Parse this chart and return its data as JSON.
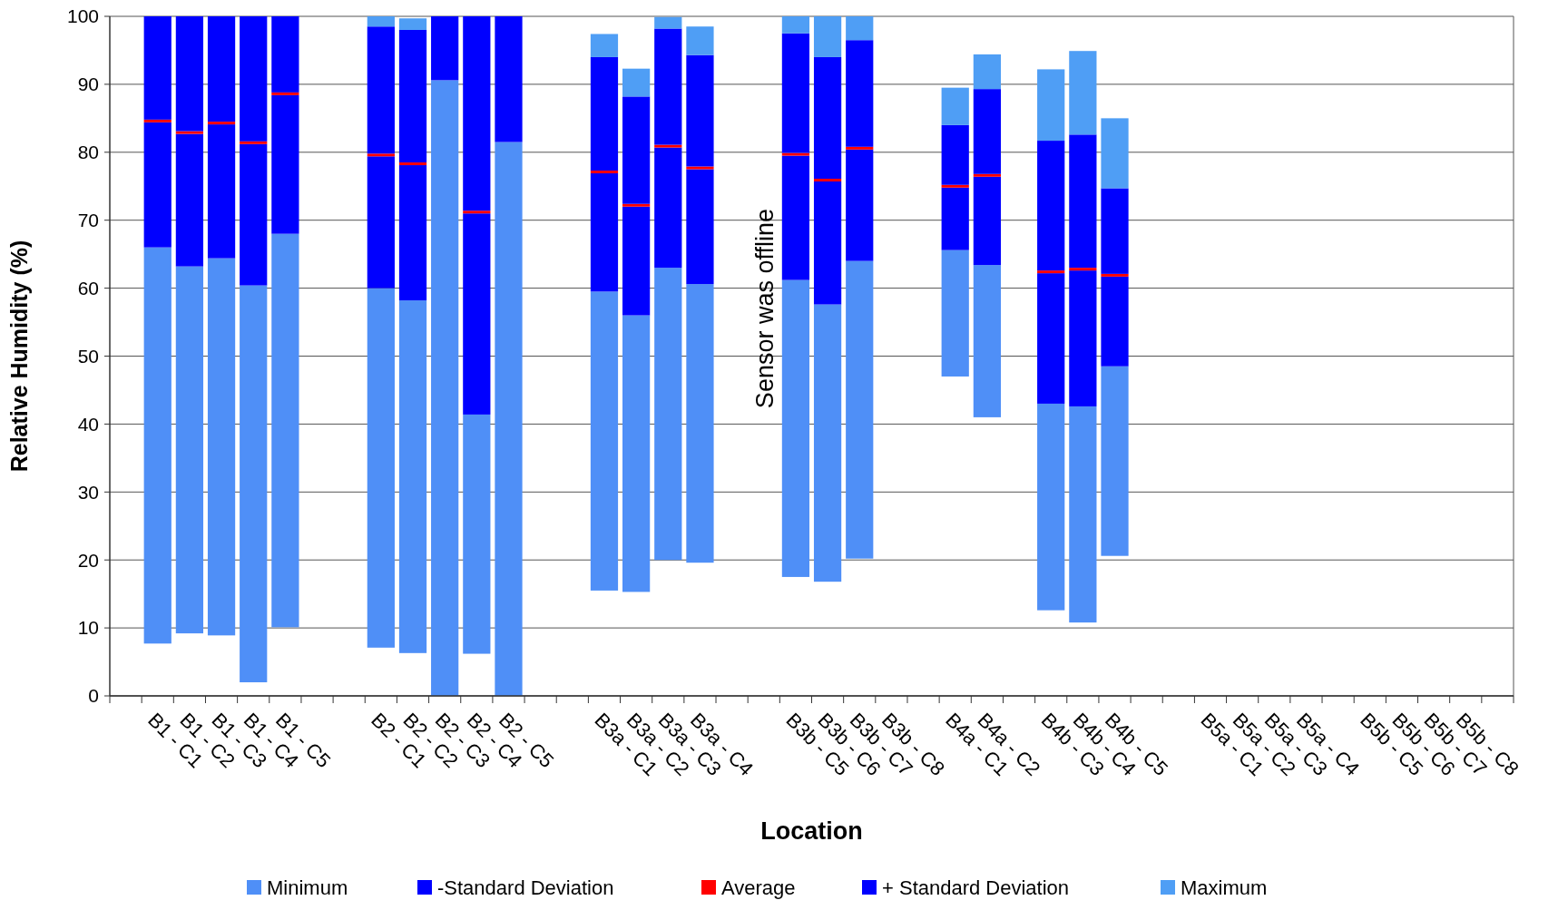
{
  "chart_data": {
    "type": "bar",
    "xlabel": "Location",
    "ylabel": "Relative Humidity (%)",
    "ylim": [
      0,
      100
    ],
    "yticks": [
      0,
      10,
      20,
      30,
      40,
      50,
      60,
      70,
      80,
      90,
      100
    ],
    "grid": "y",
    "legend": "bottom",
    "annotations": [
      "Sensor was offline"
    ],
    "categories": [
      null,
      "B1 - C1",
      "B1 - C2",
      "B1 - C3",
      "B1 - C4",
      "B1 - C5",
      null,
      null,
      "B2 - C1",
      "B2 - C2",
      "B2 - C3",
      "B2 - C4",
      "B2 - C5",
      null,
      null,
      "B3a - C1",
      "B3a - C2",
      "B3a - C3",
      "B3a - C4",
      null,
      null,
      "B3b - C5",
      "B3b - C6",
      "B3b - C7",
      "B3b - C8",
      null,
      "B4a - C1",
      "B4a - C2",
      null,
      "B4b - C3",
      "B4b - C4",
      "B4b - C5",
      null,
      null,
      "B5a - C1",
      "B5a - C2",
      "B5a - C3",
      "B5a - C4",
      null,
      "B5b - C5",
      "B5b - C6",
      "B5b - C7",
      "B5b - C8",
      null
    ],
    "series": [
      {
        "name": "Minimum",
        "color": "#4f8ff7",
        "base": [
          null,
          7.7,
          9.2,
          8.9,
          2.0,
          10.1,
          null,
          null,
          7.1,
          6.3,
          0,
          6.2,
          0,
          null,
          null,
          15.5,
          15.3,
          20.0,
          19.6,
          null,
          null,
          17.5,
          16.8,
          20.2,
          null,
          null,
          47.0,
          41.0,
          null,
          12.6,
          10.8,
          20.6,
          null,
          null,
          null,
          null,
          null,
          null,
          null,
          null,
          null,
          null,
          null,
          null
        ],
        "values": [
          null,
          58.3,
          54.0,
          55.5,
          58.4,
          57.9,
          null,
          null,
          52.9,
          51.9,
          90.6,
          35.2,
          81.5,
          null,
          null,
          44.0,
          40.7,
          43.0,
          41.0,
          null,
          null,
          43.7,
          40.8,
          43.8,
          null,
          null,
          18.6,
          22.4,
          null,
          30.4,
          31.8,
          27.9,
          null,
          null,
          null,
          null,
          null,
          null,
          null,
          null,
          null,
          null,
          null,
          null
        ]
      },
      {
        "name": "-Standard Deviation",
        "color": "#0000ff",
        "base": [
          null,
          66.0,
          63.2,
          64.4,
          60.4,
          68.0,
          null,
          null,
          60.0,
          58.2,
          90.6,
          41.4,
          81.5,
          null,
          null,
          59.5,
          56.0,
          63.0,
          60.6,
          null,
          null,
          61.2,
          57.6,
          64.0,
          null,
          null,
          65.6,
          63.4,
          null,
          43.0,
          42.6,
          48.5,
          null,
          null,
          null,
          null,
          null,
          null,
          null,
          null,
          null,
          null,
          null,
          null
        ],
        "values": [
          null,
          18.4,
          19.5,
          19.7,
          20.8,
          20.4,
          null,
          null,
          19.4,
          19.9,
          9.4,
          29.6,
          18.5,
          null,
          null,
          17.4,
          16.0,
          17.7,
          16.9,
          null,
          null,
          18.3,
          18.1,
          16.4,
          null,
          null,
          9.2,
          13.0,
          null,
          19.2,
          20.0,
          13.2,
          null,
          null,
          null,
          null,
          null,
          null,
          null,
          null,
          null,
          null,
          null,
          null
        ]
      },
      {
        "name": "Average",
        "color": "#ff0000",
        "base": [
          null,
          84.4,
          82.7,
          84.1,
          81.2,
          88.4,
          null,
          null,
          79.4,
          78.1,
          null,
          71.0,
          null,
          null,
          null,
          76.9,
          72.0,
          80.7,
          77.5,
          null,
          null,
          79.5,
          75.7,
          80.4,
          null,
          null,
          74.8,
          76.4,
          null,
          62.2,
          62.6,
          61.7,
          null,
          null,
          null,
          null,
          null,
          null,
          null,
          null,
          null,
          null,
          null,
          null
        ],
        "values": [
          null,
          0.4,
          0.4,
          0.4,
          0.4,
          0.4,
          null,
          null,
          0.4,
          0.4,
          null,
          0.4,
          null,
          null,
          null,
          0.4,
          0.4,
          0.4,
          0.4,
          null,
          null,
          0.4,
          0.4,
          0.4,
          null,
          null,
          0.4,
          0.4,
          null,
          0.4,
          0.4,
          0.4,
          null,
          null,
          null,
          null,
          null,
          null,
          null,
          null,
          null,
          null,
          null,
          null
        ]
      },
      {
        "name": "+ Standard Deviation",
        "color": "#0000ff",
        "base": [
          null,
          84.8,
          83.1,
          84.5,
          81.6,
          88.8,
          null,
          null,
          79.8,
          78.5,
          null,
          71.4,
          null,
          null,
          null,
          77.3,
          72.4,
          81.1,
          77.9,
          null,
          null,
          79.9,
          76.1,
          80.8,
          null,
          null,
          75.2,
          76.8,
          null,
          62.6,
          63.0,
          62.1,
          null,
          null,
          null,
          null,
          null,
          null,
          null,
          null,
          null,
          null,
          null,
          null
        ],
        "values": [
          null,
          15.2,
          16.9,
          15.5,
          18.4,
          11.2,
          null,
          null,
          18.7,
          19.5,
          null,
          28.6,
          null,
          null,
          null,
          16.7,
          15.8,
          17.1,
          16.4,
          null,
          null,
          17.6,
          17.9,
          15.7,
          null,
          null,
          8.8,
          12.5,
          null,
          19.1,
          19.6,
          12.6,
          null,
          null,
          null,
          null,
          null,
          null,
          null,
          null,
          null,
          null,
          null,
          null
        ]
      },
      {
        "name": "Maximum",
        "color": "#4f9ef5",
        "base": [
          null,
          null,
          null,
          null,
          null,
          null,
          null,
          null,
          98.5,
          98.0,
          null,
          null,
          null,
          null,
          null,
          94.0,
          88.2,
          98.2,
          94.3,
          null,
          null,
          97.5,
          94.0,
          96.5,
          null,
          null,
          84.0,
          89.3,
          null,
          81.7,
          82.6,
          74.7,
          null,
          null,
          null,
          null,
          null,
          null,
          null,
          null,
          null,
          null,
          null,
          null
        ],
        "values": [
          null,
          null,
          null,
          null,
          null,
          null,
          null,
          null,
          1.5,
          1.7,
          null,
          null,
          null,
          null,
          null,
          3.4,
          4.1,
          1.7,
          4.2,
          null,
          null,
          2.5,
          6.0,
          3.5,
          null,
          null,
          5.5,
          5.1,
          null,
          10.5,
          12.3,
          10.3,
          null,
          null,
          null,
          null,
          null,
          null,
          null,
          null,
          null,
          null,
          null,
          null
        ]
      }
    ]
  }
}
